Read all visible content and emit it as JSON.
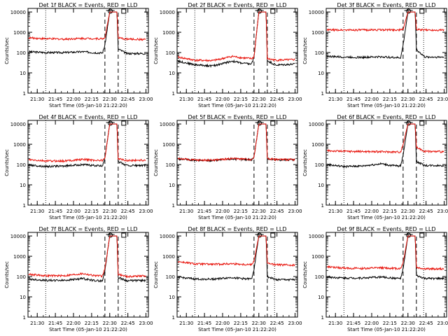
{
  "figure": {
    "layout": "3x3 grid of panels",
    "common_xlabel": "Start Time (05-Jan-10 21:22:20)",
    "common_ylabel": "Counts/sec",
    "x_ticks": [
      "21:30",
      "21:45",
      "22:00",
      "22:15",
      "22:30",
      "22:45",
      "23:00"
    ],
    "y_ticks": [
      "1",
      "10",
      "100",
      "1000",
      "10000"
    ],
    "colors": {
      "events": "#000000",
      "lld": "#e8140c",
      "axes": "#000000"
    }
  },
  "chart_data": [
    {
      "type": "line",
      "title": "Det 1f BLACK = Events, RED = LLD",
      "xlabel": "Start Time (05-Jan-10 21:22:20)",
      "ylabel": "Counts/sec",
      "xlim": [
        "21:22:20",
        "23:02:00"
      ],
      "ylim": [
        1,
        15000
      ],
      "yscale": "log",
      "dotted_vlines": [
        "21:37",
        "22:43"
      ],
      "dashed_vlines": [
        "22:26",
        "22:37"
      ],
      "flare_window": [
        "22:27",
        "22:34"
      ],
      "flare_peak": 10000,
      "series": [
        {
          "name": "BLACK = Events",
          "color": "#000000",
          "x": [
            "21:23",
            "21:37",
            "21:52",
            "22:08",
            "22:16",
            "22:24",
            "22:26",
            "22:30",
            "22:36",
            "22:37",
            "22:44",
            "23:00"
          ],
          "values": [
            110,
            100,
            100,
            110,
            100,
            95,
            230,
            10000,
            10000,
            150,
            90,
            90
          ]
        },
        {
          "name": "RED = LLD",
          "color": "#e8140c",
          "x": [
            "21:23",
            "21:37",
            "21:52",
            "22:08",
            "22:16",
            "22:24",
            "22:26",
            "22:30",
            "22:36",
            "22:37",
            "22:44",
            "23:00"
          ],
          "values": [
            530,
            480,
            460,
            500,
            490,
            480,
            520,
            10000,
            10000,
            520,
            460,
            440
          ]
        }
      ]
    },
    {
      "type": "line",
      "title": "Det 2f BLACK = Events, RED = LLD",
      "xlabel": "Start Time (05-Jan-10 21:22:20)",
      "ylabel": "Counts/sec",
      "xlim": [
        "21:22:20",
        "23:02:00"
      ],
      "ylim": [
        1,
        15000
      ],
      "yscale": "log",
      "dotted_vlines": [
        "21:37",
        "22:43"
      ],
      "dashed_vlines": [
        "22:26",
        "22:37"
      ],
      "flare_window": [
        "22:27",
        "22:34"
      ],
      "flare_peak": 10000,
      "series": [
        {
          "name": "BLACK = Events",
          "color": "#000000",
          "x": [
            "21:23",
            "21:37",
            "21:52",
            "22:08",
            "22:16",
            "22:24",
            "22:26",
            "22:30",
            "22:36",
            "22:37",
            "22:44",
            "23:00"
          ],
          "values": [
            38,
            25,
            22,
            38,
            30,
            27,
            60,
            10000,
            10000,
            40,
            24,
            27
          ]
        },
        {
          "name": "RED = LLD",
          "color": "#e8140c",
          "x": [
            "21:23",
            "21:37",
            "21:52",
            "22:08",
            "22:16",
            "22:24",
            "22:26",
            "22:30",
            "22:36",
            "22:37",
            "22:44",
            "23:00"
          ],
          "values": [
            60,
            42,
            40,
            65,
            55,
            50,
            60,
            10000,
            10000,
            50,
            42,
            45
          ]
        }
      ]
    },
    {
      "type": "line",
      "title": "Det 3f BLACK = Events, RED = LLD",
      "xlabel": "Start Time (05-Jan-10 21:22:20)",
      "ylabel": "Counts/sec",
      "xlim": [
        "21:22:20",
        "23:02:00"
      ],
      "ylim": [
        1,
        15000
      ],
      "yscale": "log",
      "dotted_vlines": [
        "21:37",
        "22:43"
      ],
      "dashed_vlines": [
        "22:26",
        "22:37"
      ],
      "flare_window": [
        "22:27",
        "22:34"
      ],
      "flare_peak": 10000,
      "series": [
        {
          "name": "BLACK = Events",
          "color": "#000000",
          "x": [
            "21:23",
            "21:37",
            "21:52",
            "22:08",
            "22:16",
            "22:24",
            "22:26",
            "22:30",
            "22:36",
            "22:37",
            "22:44",
            "23:00"
          ],
          "values": [
            65,
            60,
            58,
            62,
            58,
            55,
            230,
            10000,
            10000,
            140,
            60,
            60
          ]
        },
        {
          "name": "RED = LLD",
          "color": "#e8140c",
          "x": [
            "21:23",
            "21:37",
            "21:52",
            "22:08",
            "22:16",
            "22:24",
            "22:26",
            "22:30",
            "22:36",
            "22:37",
            "22:44",
            "23:00"
          ],
          "values": [
            1300,
            1300,
            1300,
            1320,
            1320,
            1300,
            1400,
            10000,
            10000,
            1350,
            1300,
            1300
          ]
        }
      ]
    },
    {
      "type": "line",
      "title": "Det 4f BLACK = Events, RED = LLD",
      "xlabel": "Start Time (05-Jan-10 21:22:20)",
      "ylabel": "Counts/sec",
      "xlim": [
        "21:22:20",
        "23:02:00"
      ],
      "ylim": [
        1,
        15000
      ],
      "yscale": "log",
      "dotted_vlines": [
        "21:37",
        "22:43"
      ],
      "dashed_vlines": [
        "22:26",
        "22:37"
      ],
      "flare_window": [
        "22:27",
        "22:34"
      ],
      "flare_peak": 10000,
      "series": [
        {
          "name": "BLACK = Events",
          "color": "#000000",
          "x": [
            "21:23",
            "21:37",
            "21:52",
            "22:08",
            "22:16",
            "22:24",
            "22:26",
            "22:30",
            "22:36",
            "22:37",
            "22:44",
            "23:00"
          ],
          "values": [
            95,
            80,
            85,
            100,
            90,
            85,
            230,
            10000,
            10000,
            140,
            90,
            90
          ]
        },
        {
          "name": "RED = LLD",
          "color": "#e8140c",
          "x": [
            "21:23",
            "21:37",
            "21:52",
            "22:08",
            "22:16",
            "22:24",
            "22:26",
            "22:30",
            "22:36",
            "22:37",
            "22:44",
            "23:00"
          ],
          "values": [
            170,
            150,
            150,
            180,
            165,
            160,
            200,
            10000,
            10000,
            190,
            160,
            165
          ]
        }
      ]
    },
    {
      "type": "line",
      "title": "Det 5f BLACK = Events, RED = LLD",
      "xlabel": "Start Time (05-Jan-10 21:22:20)",
      "ylabel": "Counts/sec",
      "xlim": [
        "21:22:20",
        "23:02:00"
      ],
      "ylim": [
        1,
        15000
      ],
      "yscale": "log",
      "dotted_vlines": [
        "21:37",
        "22:43"
      ],
      "dashed_vlines": [
        "22:26",
        "22:37"
      ],
      "flare_window": [
        "22:27",
        "22:34"
      ],
      "flare_peak": 10000,
      "series": [
        {
          "name": "BLACK = Events",
          "color": "#000000",
          "x": [
            "21:23",
            "21:37",
            "21:52",
            "22:08",
            "22:16",
            "22:24",
            "22:26",
            "22:30",
            "22:36",
            "22:37",
            "22:44",
            "23:00"
          ],
          "values": [
            190,
            160,
            160,
            190,
            180,
            175,
            230,
            10000,
            10000,
            190,
            170,
            170
          ]
        },
        {
          "name": "RED = LLD",
          "color": "#e8140c",
          "x": [
            "21:23",
            "21:37",
            "21:52",
            "22:08",
            "22:16",
            "22:24",
            "22:26",
            "22:30",
            "22:36",
            "22:37",
            "22:44",
            "23:00"
          ],
          "values": [
            200,
            165,
            165,
            200,
            190,
            180,
            230,
            10000,
            10000,
            200,
            180,
            175
          ]
        }
      ]
    },
    {
      "type": "line",
      "title": "Det 6f BLACK = Events, RED = LLD",
      "xlabel": "Start Time (05-Jan-10 21:22:20)",
      "ylabel": "Counts/sec",
      "xlim": [
        "21:22:20",
        "23:02:00"
      ],
      "ylim": [
        1,
        15000
      ],
      "yscale": "log",
      "dotted_vlines": [
        "21:37",
        "22:43"
      ],
      "dashed_vlines": [
        "22:26",
        "22:37"
      ],
      "flare_window": [
        "22:27",
        "22:34"
      ],
      "flare_peak": 10000,
      "series": [
        {
          "name": "BLACK = Events",
          "color": "#000000",
          "x": [
            "21:23",
            "21:37",
            "21:52",
            "22:08",
            "22:16",
            "22:24",
            "22:26",
            "22:30",
            "22:36",
            "22:37",
            "22:44",
            "23:00"
          ],
          "values": [
            100,
            80,
            85,
            110,
            90,
            85,
            300,
            10000,
            10000,
            140,
            90,
            90
          ]
        },
        {
          "name": "RED = LLD",
          "color": "#e8140c",
          "x": [
            "21:23",
            "21:37",
            "21:52",
            "22:08",
            "22:16",
            "22:24",
            "22:26",
            "22:30",
            "22:36",
            "22:37",
            "22:44",
            "23:00"
          ],
          "values": [
            480,
            450,
            440,
            430,
            420,
            420,
            1000,
            10000,
            10000,
            700,
            450,
            430
          ]
        }
      ]
    },
    {
      "type": "line",
      "title": "Det 7f BLACK = Events, RED = LLD",
      "xlabel": "Start Time (05-Jan-10 21:22:20)",
      "ylabel": "Counts/sec",
      "xlim": [
        "21:22:20",
        "23:02:00"
      ],
      "ylim": [
        1,
        15000
      ],
      "yscale": "log",
      "dotted_vlines": [
        "21:37",
        "22:43"
      ],
      "dashed_vlines": [
        "22:26",
        "22:37"
      ],
      "flare_window": [
        "22:27",
        "22:34"
      ],
      "flare_peak": 10000,
      "series": [
        {
          "name": "BLACK = Events",
          "color": "#000000",
          "x": [
            "21:23",
            "21:37",
            "21:52",
            "22:08",
            "22:16",
            "22:24",
            "22:26",
            "22:30",
            "22:36",
            "22:37",
            "22:44",
            "23:00"
          ],
          "values": [
            75,
            65,
            65,
            80,
            65,
            60,
            200,
            10000,
            10000,
            90,
            62,
            65
          ]
        },
        {
          "name": "RED = LLD",
          "color": "#e8140c",
          "x": [
            "21:23",
            "21:37",
            "21:52",
            "22:08",
            "22:16",
            "22:24",
            "22:26",
            "22:30",
            "22:36",
            "22:37",
            "22:44",
            "23:00"
          ],
          "values": [
            130,
            110,
            110,
            140,
            115,
            105,
            250,
            10000,
            10000,
            130,
            100,
            110
          ]
        }
      ]
    },
    {
      "type": "line",
      "title": "Det 8f BLACK = Events, RED = LLD",
      "xlabel": "Start Time (05-Jan-10 21:22:20)",
      "ylabel": "Counts/sec",
      "xlim": [
        "21:22:20",
        "23:02:00"
      ],
      "ylim": [
        1,
        15000
      ],
      "yscale": "log",
      "dotted_vlines": [
        "21:37",
        "22:43"
      ],
      "dashed_vlines": [
        "22:26",
        "22:37"
      ],
      "flare_window": [
        "22:27",
        "22:34"
      ],
      "flare_peak": 10000,
      "series": [
        {
          "name": "BLACK = Events",
          "color": "#000000",
          "x": [
            "21:23",
            "21:37",
            "21:52",
            "22:08",
            "22:16",
            "22:24",
            "22:26",
            "22:30",
            "22:36",
            "22:37",
            "22:44",
            "23:00"
          ],
          "values": [
            95,
            75,
            75,
            90,
            80,
            75,
            230,
            10000,
            10000,
            100,
            70,
            70
          ]
        },
        {
          "name": "RED = LLD",
          "color": "#e8140c",
          "x": [
            "21:23",
            "21:37",
            "21:52",
            "22:08",
            "22:16",
            "22:24",
            "22:26",
            "22:30",
            "22:36",
            "22:37",
            "22:44",
            "23:00"
          ],
          "values": [
            550,
            420,
            400,
            430,
            400,
            390,
            600,
            10000,
            10000,
            450,
            380,
            370
          ]
        }
      ]
    },
    {
      "type": "line",
      "title": "Det 9f BLACK = Events, RED = LLD",
      "xlabel": "Start Time (05-Jan-10 21:22:20)",
      "ylabel": "Counts/sec",
      "xlim": [
        "21:22:20",
        "23:02:00"
      ],
      "ylim": [
        1,
        15000
      ],
      "yscale": "log",
      "dotted_vlines": [
        "21:37",
        "22:43"
      ],
      "dashed_vlines": [
        "22:26",
        "22:37"
      ],
      "flare_window": [
        "22:27",
        "22:34"
      ],
      "flare_peak": 10000,
      "series": [
        {
          "name": "BLACK = Events",
          "color": "#000000",
          "x": [
            "21:23",
            "21:37",
            "21:52",
            "22:08",
            "22:16",
            "22:24",
            "22:26",
            "22:30",
            "22:36",
            "22:37",
            "22:44",
            "23:00"
          ],
          "values": [
            95,
            85,
            85,
            95,
            85,
            80,
            230,
            10000,
            10000,
            110,
            80,
            80
          ]
        },
        {
          "name": "RED = LLD",
          "color": "#e8140c",
          "x": [
            "21:23",
            "21:37",
            "21:52",
            "22:08",
            "22:16",
            "22:24",
            "22:26",
            "22:30",
            "22:36",
            "22:37",
            "22:44",
            "23:00"
          ],
          "values": [
            300,
            260,
            250,
            270,
            255,
            250,
            500,
            10000,
            10000,
            280,
            240,
            240
          ]
        }
      ]
    }
  ]
}
